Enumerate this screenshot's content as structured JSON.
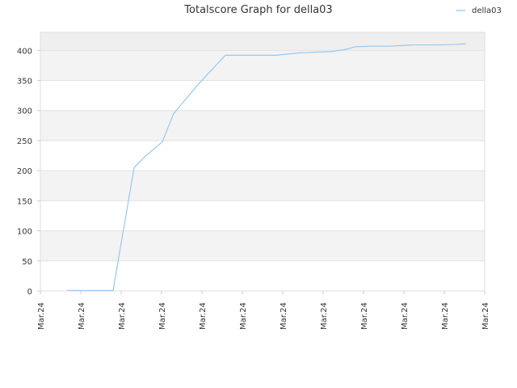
{
  "chart_data": {
    "type": "line",
    "title": "Totalscore Graph for della03",
    "xlabel": "",
    "ylabel": "",
    "ylim": [
      0,
      430
    ],
    "yticks": [
      0,
      50,
      100,
      150,
      200,
      250,
      300,
      350,
      400
    ],
    "xlim": [
      0,
      11
    ],
    "x_tick_labels": [
      "Mar.24",
      "Mar.24",
      "Mar.24",
      "Mar.24",
      "Mar.24",
      "Mar.24",
      "Mar.24",
      "Mar.24",
      "Mar.24",
      "Mar.24",
      "Mar.24",
      "Mar.24"
    ],
    "grid": true,
    "legend_position": "top-right",
    "series": [
      {
        "name": "della03",
        "color": "#90c4f0",
        "x": [
          0.66,
          1.8,
          2.32,
          2.58,
          3.02,
          3.3,
          3.9,
          4.58,
          5.5,
          5.85,
          6.42,
          7.2,
          7.52,
          7.8,
          8.18,
          8.62,
          9.2,
          9.85,
          10.3,
          10.54
        ],
        "y": [
          1,
          1,
          205,
          223,
          248,
          295,
          343,
          392,
          392,
          392,
          396,
          398,
          401,
          406,
          407,
          407,
          409,
          409,
          410,
          411
        ]
      }
    ]
  }
}
